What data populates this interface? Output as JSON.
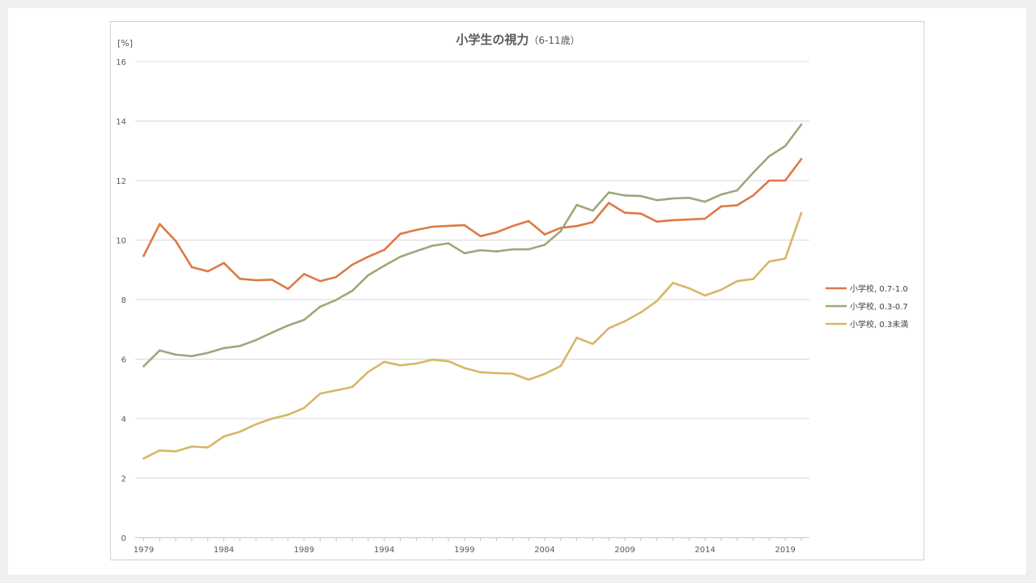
{
  "chart_data": {
    "type": "line",
    "title": "小学生の視力",
    "title_suffix": "（6-11歳）",
    "ylabel": "[%]",
    "ylim": [
      0,
      16
    ],
    "yticks": [
      0,
      2,
      4,
      6,
      8,
      10,
      12,
      14,
      16
    ],
    "xlim": [
      1979,
      2020
    ],
    "xticks": [
      1979,
      1984,
      1989,
      1994,
      1999,
      2004,
      2009,
      2014,
      2019
    ],
    "grid": true,
    "legend_position": "right",
    "x": [
      1979,
      1980,
      1981,
      1982,
      1983,
      1984,
      1985,
      1986,
      1987,
      1988,
      1989,
      1990,
      1991,
      1992,
      1993,
      1994,
      1995,
      1996,
      1997,
      1998,
      1999,
      2000,
      2001,
      2002,
      2003,
      2004,
      2005,
      2006,
      2007,
      2008,
      2009,
      2010,
      2011,
      2012,
      2013,
      2014,
      2015,
      2016,
      2017,
      2018,
      2019,
      2020
    ],
    "series": [
      {
        "name": "小学校, 0.7-1.0",
        "color": "#dc7a45",
        "values": [
          9.47,
          10.54,
          9.97,
          9.09,
          8.95,
          9.23,
          8.7,
          8.65,
          8.67,
          8.36,
          8.86,
          8.62,
          8.76,
          9.17,
          9.44,
          9.67,
          10.21,
          10.34,
          10.45,
          10.48,
          10.5,
          10.13,
          10.26,
          10.47,
          10.64,
          10.19,
          10.41,
          10.47,
          10.6,
          11.25,
          10.92,
          10.89,
          10.62,
          10.67,
          10.69,
          10.72,
          11.13,
          11.17,
          11.5,
          12.0,
          12.0,
          12.72
        ]
      },
      {
        "name": "小学校, 0.3-0.7",
        "color": "#9fa77a",
        "values": [
          5.76,
          6.29,
          6.15,
          6.1,
          6.21,
          6.37,
          6.44,
          6.64,
          6.89,
          7.13,
          7.32,
          7.76,
          7.99,
          8.29,
          8.82,
          9.14,
          9.44,
          9.63,
          9.81,
          9.89,
          9.56,
          9.66,
          9.62,
          9.69,
          9.69,
          9.84,
          10.3,
          11.18,
          10.99,
          11.6,
          11.5,
          11.48,
          11.34,
          11.4,
          11.42,
          11.29,
          11.53,
          11.67,
          12.26,
          12.82,
          13.16,
          13.88
        ]
      },
      {
        "name": "小学校, 0.3未満",
        "color": "#d7b766",
        "values": [
          2.66,
          2.93,
          2.9,
          3.06,
          3.03,
          3.4,
          3.56,
          3.81,
          4.0,
          4.13,
          4.36,
          4.84,
          4.95,
          5.06,
          5.57,
          5.91,
          5.79,
          5.85,
          5.98,
          5.93,
          5.7,
          5.56,
          5.53,
          5.51,
          5.31,
          5.5,
          5.77,
          6.72,
          6.51,
          7.04,
          7.27,
          7.57,
          7.95,
          8.56,
          8.38,
          8.14,
          8.33,
          8.62,
          8.69,
          9.28,
          9.38,
          10.91
        ]
      }
    ]
  }
}
